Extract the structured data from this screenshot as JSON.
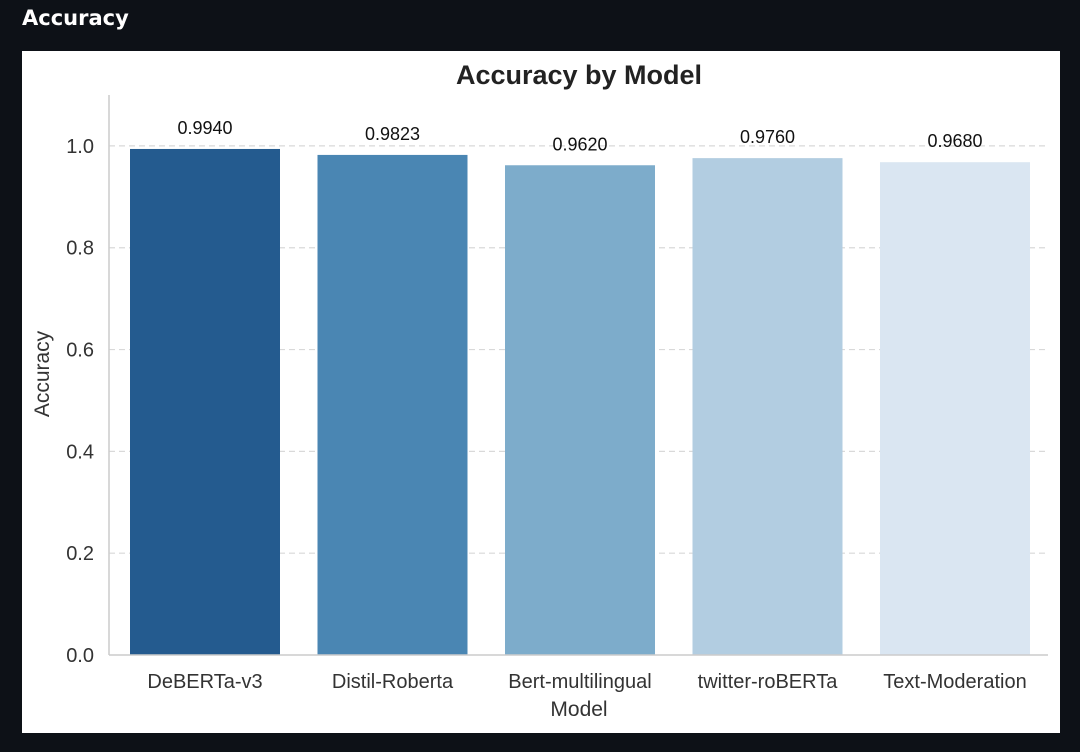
{
  "header": {
    "title": "Accuracy"
  },
  "colors": {
    "page_background": "#0d1117",
    "panel_background": "#ffffff",
    "grid": "#d9d9d9",
    "axis": "#cccccc",
    "bars": [
      "#245b8f",
      "#4a86b3",
      "#7daccb",
      "#b2cde1",
      "#dae6f2"
    ]
  },
  "chart_data": {
    "type": "bar",
    "title": "Accuracy by Model",
    "xlabel": "Model",
    "ylabel": "Accuracy",
    "categories": [
      "DeBERTa-v3",
      "Distil-Roberta",
      "Bert-multilingual",
      "twitter-roBERTa",
      "Text-Moderation"
    ],
    "values": [
      0.994,
      0.9823,
      0.962,
      0.976,
      0.968
    ],
    "value_labels": [
      "0.9940",
      "0.9823",
      "0.9620",
      "0.9760",
      "0.9680"
    ],
    "ylim": [
      0.0,
      1.1
    ],
    "yticks": [
      0.0,
      0.2,
      0.4,
      0.6,
      0.8,
      1.0
    ],
    "ytick_labels": [
      "0.0",
      "0.2",
      "0.4",
      "0.6",
      "0.8",
      "1.0"
    ],
    "grid": "y-dashed",
    "legend": "none"
  }
}
